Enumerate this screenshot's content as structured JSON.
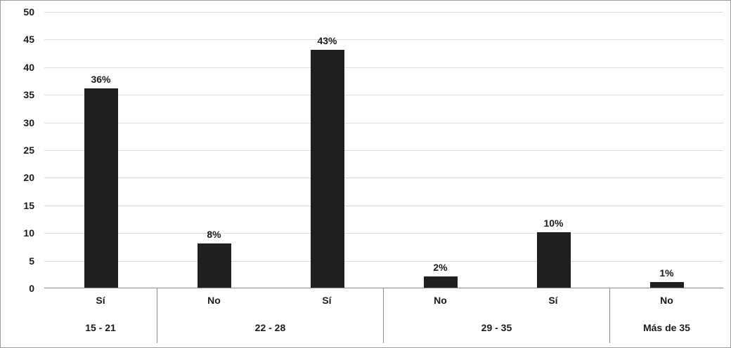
{
  "chart_data": {
    "type": "bar",
    "title": "",
    "xlabel": "",
    "ylabel": "",
    "ylim": [
      0,
      50
    ],
    "y_ticks": [
      0,
      5,
      10,
      15,
      20,
      25,
      30,
      35,
      40,
      45,
      50
    ],
    "grid": true,
    "legend": "none",
    "bar_color": "#1f1f1f",
    "categories": [
      "Sí",
      "No",
      "Sí",
      "No",
      "Sí",
      "No"
    ],
    "values": [
      36,
      8,
      43,
      2,
      10,
      1
    ],
    "data_labels": [
      "36%",
      "8%",
      "43%",
      "2%",
      "10%",
      "1%"
    ],
    "groups": [
      {
        "label": "15 - 21",
        "categories": [
          "Sí"
        ],
        "values": [
          36
        ],
        "data_labels": [
          "36%"
        ]
      },
      {
        "label": "22 - 28",
        "categories": [
          "No",
          "Sí"
        ],
        "values": [
          8,
          43
        ],
        "data_labels": [
          "8%",
          "43%"
        ]
      },
      {
        "label": "29 - 35",
        "categories": [
          "No",
          "Sí"
        ],
        "values": [
          2,
          10
        ],
        "data_labels": [
          "2%",
          "10%"
        ]
      },
      {
        "label": "Más de 35",
        "categories": [
          "No"
        ],
        "values": [
          1
        ],
        "data_labels": [
          "1%"
        ]
      }
    ]
  },
  "colors": {
    "bar": "#1f1f1f",
    "gridline": "#d9d9d9",
    "axis_line": "#8a8a8a",
    "text": "#1a1a1a",
    "border": "#9e9e9e"
  }
}
